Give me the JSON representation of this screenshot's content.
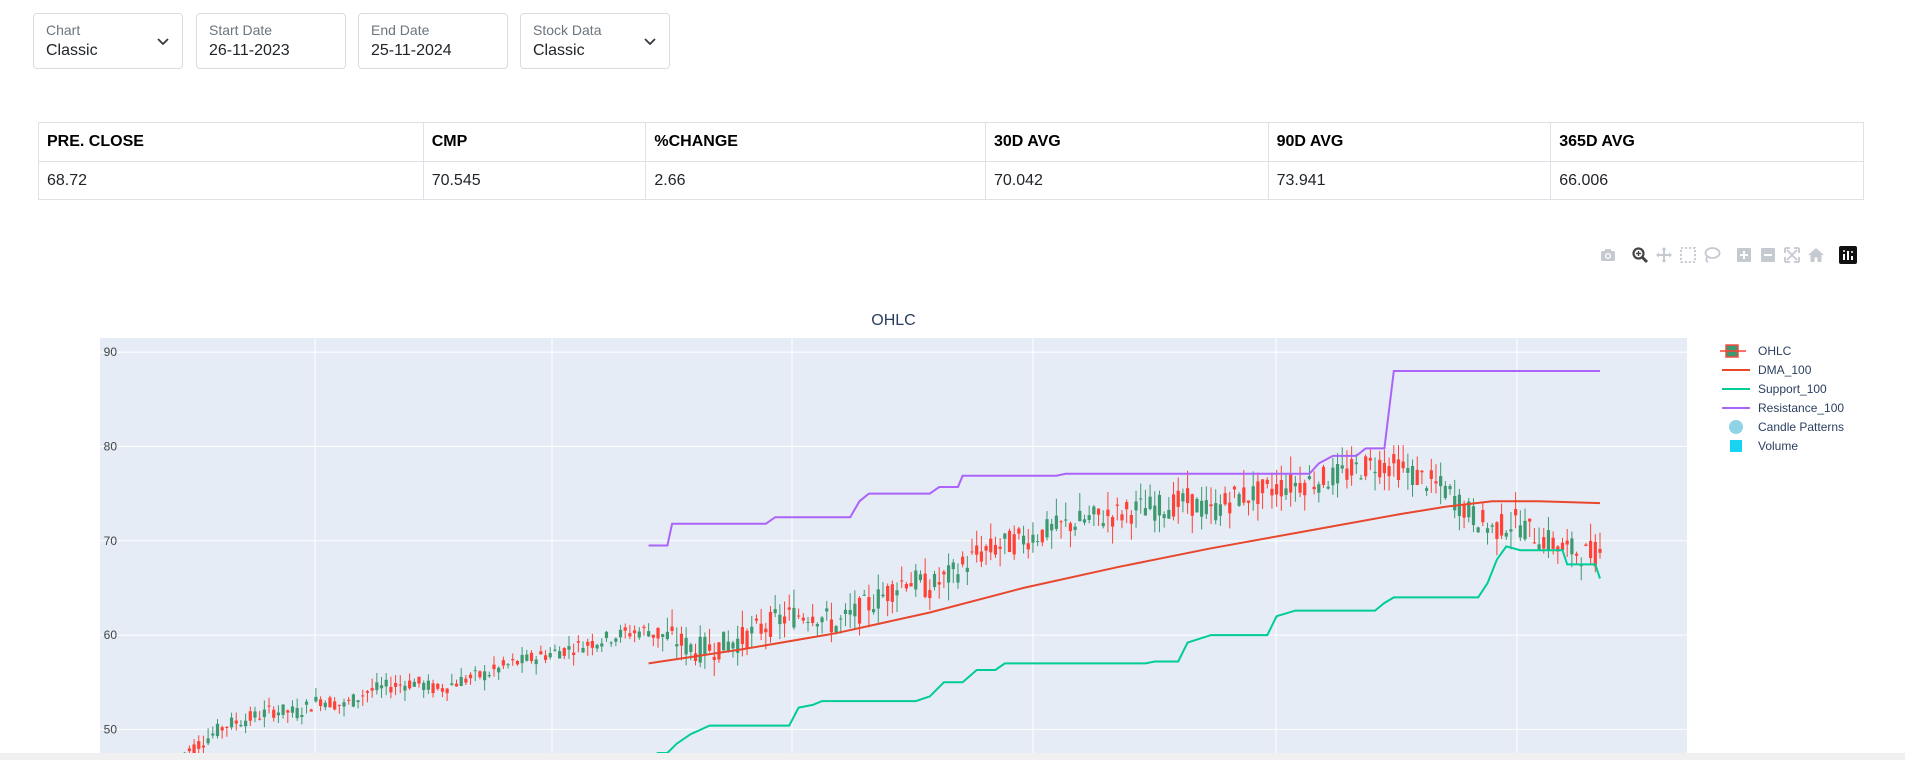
{
  "controls": [
    {
      "label": "Chart",
      "value": "Classic",
      "dropdown": true
    },
    {
      "label": "Start Date",
      "value": "26-11-2023",
      "dropdown": false
    },
    {
      "label": "End Date",
      "value": "25-11-2024",
      "dropdown": false
    },
    {
      "label": "Stock Data",
      "value": "Classic",
      "dropdown": true
    }
  ],
  "stats": {
    "headers": [
      "PRE. CLOSE",
      "CMP",
      "%CHANGE",
      "30D AVG",
      "90D AVG",
      "365D AVG"
    ],
    "values": [
      "68.72",
      "70.545",
      "2.66",
      "70.042",
      "73.941",
      "66.006"
    ]
  },
  "modebar": [
    "camera-icon",
    "zoom-icon",
    "pan-icon",
    "box-select-icon",
    "lasso-icon",
    "zoom-in-icon",
    "zoom-out-icon",
    "autoscale-icon",
    "reset-axes-icon",
    "plotly-logo-icon"
  ],
  "chart_data": {
    "type": "line",
    "title": "OHLC",
    "ylim": [
      47.5,
      91.5
    ],
    "yticks": [
      50,
      60,
      70,
      80,
      90
    ],
    "grid": true,
    "legend_position": "right",
    "legend": [
      "OHLC",
      "DMA_100",
      "Support_100",
      "Resistance_100",
      "Candle Patterns",
      "Volume"
    ],
    "colors": {
      "increasing": "#3d9970",
      "decreasing": "#ff4136",
      "dma": "#e8472e",
      "support": "#00cc96",
      "resistance": "#ab63fa",
      "patterns": "#8fd4e6",
      "volume": "#19d3f3",
      "plot_bg": "#e5ecf6"
    },
    "ohlc_close_series": [
      [
        0,
        47.2
      ],
      [
        5,
        48.8
      ],
      [
        10,
        50.5
      ],
      [
        15,
        51.2
      ],
      [
        20,
        52.0
      ],
      [
        25,
        51.8
      ],
      [
        30,
        53.2
      ],
      [
        35,
        52.5
      ],
      [
        40,
        54.0
      ],
      [
        45,
        54.6
      ],
      [
        50,
        55.0
      ],
      [
        55,
        54.2
      ],
      [
        60,
        55.2
      ],
      [
        65,
        55.8
      ],
      [
        70,
        56.8
      ],
      [
        75,
        57.5
      ],
      [
        80,
        58.2
      ],
      [
        85,
        58.8
      ],
      [
        90,
        59.5
      ],
      [
        95,
        60.2
      ],
      [
        100,
        60.5
      ],
      [
        105,
        59.6
      ],
      [
        110,
        58.4
      ],
      [
        115,
        58.8
      ],
      [
        120,
        59.6
      ],
      [
        125,
        61.0
      ],
      [
        130,
        62.0
      ],
      [
        135,
        62.4
      ],
      [
        140,
        61.0
      ],
      [
        145,
        62.6
      ],
      [
        150,
        64.2
      ],
      [
        155,
        66.0
      ],
      [
        160,
        65.0
      ],
      [
        165,
        66.5
      ],
      [
        170,
        68.5
      ],
      [
        175,
        69.4
      ],
      [
        180,
        70.2
      ],
      [
        185,
        71.0
      ],
      [
        190,
        71.8
      ],
      [
        195,
        72.4
      ],
      [
        200,
        72.8
      ],
      [
        205,
        73.4
      ],
      [
        210,
        73.6
      ],
      [
        215,
        74.2
      ],
      [
        220,
        73.0
      ],
      [
        225,
        74.6
      ],
      [
        230,
        75.0
      ],
      [
        235,
        75.8
      ],
      [
        240,
        76.2
      ],
      [
        245,
        76.6
      ],
      [
        250,
        77.4
      ],
      [
        255,
        78.2
      ],
      [
        260,
        77.8
      ],
      [
        265,
        76.6
      ],
      [
        270,
        75.4
      ],
      [
        275,
        73.0
      ],
      [
        280,
        71.2
      ],
      [
        285,
        72.0
      ],
      [
        290,
        70.4
      ],
      [
        295,
        69.2
      ],
      [
        300,
        68.6
      ],
      [
        303,
        68.7
      ]
    ],
    "dma_100": [
      [
        100,
        57.0
      ],
      [
        120,
        58.5
      ],
      [
        140,
        60.2
      ],
      [
        160,
        62.4
      ],
      [
        180,
        65.0
      ],
      [
        200,
        67.2
      ],
      [
        220,
        69.2
      ],
      [
        240,
        71.0
      ],
      [
        260,
        72.8
      ],
      [
        270,
        73.6
      ],
      [
        280,
        74.2
      ],
      [
        290,
        74.2
      ],
      [
        303,
        74.0
      ]
    ],
    "support_100": [
      [
        100,
        47.0
      ],
      [
        102,
        47.5
      ],
      [
        104,
        47.5
      ],
      [
        106,
        48.5
      ],
      [
        109,
        49.5
      ],
      [
        113,
        50.4
      ],
      [
        130,
        50.4
      ],
      [
        132,
        52.3
      ],
      [
        135,
        52.6
      ],
      [
        137,
        53.0
      ],
      [
        157,
        53.0
      ],
      [
        160,
        53.5
      ],
      [
        163,
        55.0
      ],
      [
        167,
        55.0
      ],
      [
        170,
        56.3
      ],
      [
        174,
        56.3
      ],
      [
        176,
        57.0
      ],
      [
        206,
        57.0
      ],
      [
        208,
        57.2
      ],
      [
        213,
        57.2
      ],
      [
        215,
        59.2
      ],
      [
        220,
        60.0
      ],
      [
        232,
        60.0
      ],
      [
        234,
        62.0
      ],
      [
        238,
        62.6
      ],
      [
        255,
        62.6
      ],
      [
        257,
        63.4
      ],
      [
        259,
        64.0
      ],
      [
        277,
        64.0
      ],
      [
        279,
        65.5
      ],
      [
        281,
        68.0
      ],
      [
        283,
        69.4
      ],
      [
        286,
        69.0
      ],
      [
        295,
        69.0
      ],
      [
        296,
        67.5
      ],
      [
        302,
        67.5
      ],
      [
        303,
        66.0
      ]
    ],
    "resistance_100": [
      [
        100,
        69.5
      ],
      [
        104,
        69.5
      ],
      [
        105,
        71.8
      ],
      [
        125,
        71.8
      ],
      [
        127,
        72.5
      ],
      [
        143,
        72.5
      ],
      [
        145,
        74.2
      ],
      [
        147,
        75.0
      ],
      [
        160,
        75.0
      ],
      [
        162,
        75.7
      ],
      [
        166,
        75.7
      ],
      [
        167,
        76.9
      ],
      [
        187,
        76.9
      ],
      [
        189,
        77.1
      ],
      [
        241,
        77.1
      ],
      [
        243,
        78.2
      ],
      [
        246,
        79.0
      ],
      [
        251,
        79.0
      ],
      [
        253,
        79.8
      ],
      [
        257,
        79.8
      ],
      [
        259,
        88.0
      ],
      [
        303,
        88.0
      ]
    ]
  }
}
